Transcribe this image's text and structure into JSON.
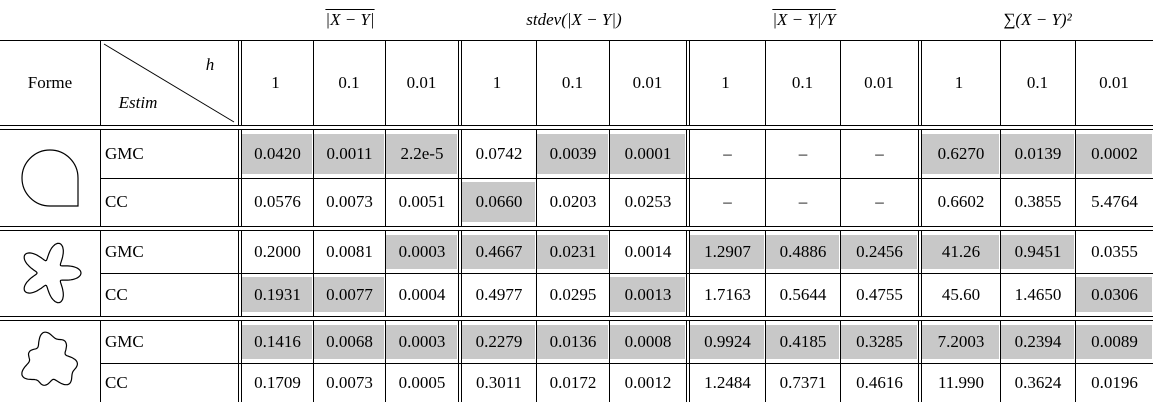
{
  "header": {
    "forme": "Forme",
    "diag_top": "h",
    "diag_bottom": "Estim",
    "groups": [
      "|X − Y|",
      "stdev(|X − Y|)",
      "|X − Y|/Y",
      "∑(X − Y)²"
    ],
    "steps": [
      "1",
      "0.1",
      "0.01"
    ]
  },
  "rows": [
    {
      "estim": "GMC",
      "cells": [
        "0.0420",
        "0.0011",
        "2.2e-5",
        "0.0742",
        "0.0039",
        "0.0001",
        "–",
        "–",
        "–",
        "0.6270",
        "0.0139",
        "0.0002"
      ],
      "shaded": [
        true,
        true,
        true,
        false,
        true,
        true,
        false,
        false,
        false,
        true,
        true,
        true
      ]
    },
    {
      "estim": "CC",
      "cells": [
        "0.0576",
        "0.0073",
        "0.0051",
        "0.0660",
        "0.0203",
        "0.0253",
        "–",
        "–",
        "–",
        "0.6602",
        "0.3855",
        "5.4764"
      ],
      "shaded": [
        false,
        false,
        false,
        true,
        false,
        false,
        false,
        false,
        false,
        false,
        false,
        false
      ]
    },
    {
      "estim": "GMC",
      "cells": [
        "0.2000",
        "0.0081",
        "0.0003",
        "0.4667",
        "0.0231",
        "0.0014",
        "1.2907",
        "0.4886",
        "0.2456",
        "41.26",
        "0.9451",
        "0.0355"
      ],
      "shaded": [
        false,
        false,
        true,
        true,
        true,
        false,
        true,
        true,
        true,
        true,
        true,
        false
      ]
    },
    {
      "estim": "CC",
      "cells": [
        "0.1931",
        "0.0077",
        "0.0004",
        "0.4977",
        "0.0295",
        "0.0013",
        "1.7163",
        "0.5644",
        "0.4755",
        "45.60",
        "1.4650",
        "0.0306"
      ],
      "shaded": [
        true,
        true,
        false,
        false,
        false,
        true,
        false,
        false,
        false,
        false,
        false,
        true
      ]
    },
    {
      "estim": "GMC",
      "cells": [
        "0.1416",
        "0.0068",
        "0.0003",
        "0.2279",
        "0.0136",
        "0.0008",
        "0.9924",
        "0.4185",
        "0.3285",
        "7.2003",
        "0.2394",
        "0.0089"
      ],
      "shaded": [
        true,
        true,
        true,
        true,
        true,
        true,
        true,
        true,
        true,
        true,
        true,
        true
      ]
    },
    {
      "estim": "CC",
      "cells": [
        "0.1709",
        "0.0073",
        "0.0005",
        "0.3011",
        "0.0172",
        "0.0012",
        "1.2484",
        "0.7371",
        "0.4616",
        "11.990",
        "0.3624",
        "0.0196"
      ],
      "shaded": [
        false,
        false,
        false,
        false,
        false,
        false,
        false,
        false,
        false,
        false,
        false,
        false
      ]
    }
  ]
}
